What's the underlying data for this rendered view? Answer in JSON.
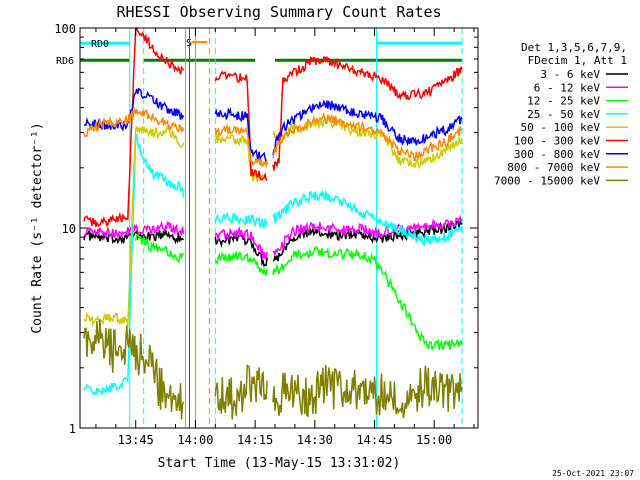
{
  "chart_data": {
    "type": "line",
    "title": "RHESSI Observing Summary Count Rates",
    "xlabel": "Start Time (13-May-15 13:31:02)",
    "ylabel": "Count Rate (s⁻¹ detector⁻¹)",
    "y_scale": "log",
    "ylim": [
      1,
      100
    ],
    "xlim_minutes": [
      0,
      100
    ],
    "x_ticks": [
      {
        "t": 14,
        "label": "13:45"
      },
      {
        "t": 29,
        "label": "14:00"
      },
      {
        "t": 44,
        "label": "14:15"
      },
      {
        "t": 59,
        "label": "14:30"
      },
      {
        "t": 74,
        "label": "14:45"
      },
      {
        "t": 89,
        "label": "15:00"
      }
    ],
    "y_ticks": [
      {
        "v": 1,
        "label": "1"
      },
      {
        "v": 10,
        "label": "10"
      },
      {
        "v": 100,
        "label": "100"
      }
    ],
    "legend_header": [
      "Det 1,3,5,6,7,9,",
      "FDecim 1, Att 1"
    ],
    "series": [
      {
        "name": "3 - 6 keV",
        "color": "#000000",
        "points": [
          [
            1,
            9.2
          ],
          [
            8,
            8.8
          ],
          [
            14,
            9.2
          ],
          [
            18,
            9.0
          ],
          [
            22,
            9.4
          ],
          [
            24,
            9.0
          ],
          [
            34,
            8.6
          ],
          [
            40,
            8.8
          ],
          [
            43,
            8.5
          ],
          [
            46,
            6.8
          ],
          [
            50,
            7.2
          ],
          [
            53,
            9.0
          ],
          [
            59,
            9.6
          ],
          [
            65,
            9.2
          ],
          [
            70,
            9.4
          ],
          [
            74,
            8.8
          ],
          [
            80,
            9.2
          ],
          [
            87,
            9.6
          ],
          [
            92,
            10.0
          ],
          [
            96,
            10.4
          ]
        ]
      },
      {
        "name": "6 - 12 keV",
        "color": "#ff00ff",
        "points": [
          [
            1,
            9.6
          ],
          [
            8,
            9.4
          ],
          [
            14,
            9.8
          ],
          [
            18,
            9.8
          ],
          [
            22,
            10.2
          ],
          [
            24,
            9.8
          ],
          [
            34,
            9.2
          ],
          [
            40,
            9.5
          ],
          [
            43,
            9.2
          ],
          [
            46,
            7.4
          ],
          [
            50,
            7.8
          ],
          [
            53,
            9.6
          ],
          [
            59,
            10.2
          ],
          [
            65,
            9.8
          ],
          [
            70,
            10.0
          ],
          [
            74,
            9.4
          ],
          [
            80,
            9.8
          ],
          [
            87,
            10.2
          ],
          [
            92,
            10.6
          ],
          [
            96,
            11.0
          ]
        ]
      },
      {
        "name": "12 - 25 keV",
        "color": "#00ff00",
        "points": [
          [
            14,
            9.0
          ],
          [
            18,
            8.0
          ],
          [
            22,
            7.6
          ],
          [
            24,
            7.2
          ],
          [
            34,
            7.0
          ],
          [
            40,
            7.2
          ],
          [
            43,
            7.0
          ],
          [
            46,
            6.0
          ],
          [
            50,
            6.2
          ],
          [
            53,
            7.2
          ],
          [
            59,
            7.6
          ],
          [
            65,
            7.4
          ],
          [
            70,
            7.4
          ],
          [
            74,
            7.0
          ],
          [
            87,
            2.6
          ],
          [
            96,
            2.6
          ]
        ]
      },
      {
        "name": "25 - 50 keV",
        "color": "#00ffff",
        "points": [
          [
            1,
            1.6
          ],
          [
            5,
            1.5
          ],
          [
            8,
            1.6
          ],
          [
            12,
            1.7
          ],
          [
            14,
            29
          ],
          [
            16,
            22
          ],
          [
            18,
            19
          ],
          [
            22,
            17
          ],
          [
            25,
            16
          ],
          [
            27,
            14
          ],
          [
            34,
            11
          ],
          [
            38,
            11.2
          ],
          [
            43,
            11
          ],
          [
            46,
            10.6
          ],
          [
            50,
            11.6
          ],
          [
            53,
            13
          ],
          [
            56,
            14
          ],
          [
            59,
            14.6
          ],
          [
            62,
            14.4
          ],
          [
            65,
            14
          ],
          [
            68,
            13
          ],
          [
            70,
            12
          ],
          [
            74,
            11
          ],
          [
            80,
            9.8
          ],
          [
            87,
            8.6
          ],
          [
            92,
            9.0
          ],
          [
            96,
            10.2
          ]
        ]
      },
      {
        "name": "50 - 100 keV",
        "color": "#cccc00",
        "points": [
          [
            1,
            3.6
          ],
          [
            5,
            3.4
          ],
          [
            8,
            3.6
          ],
          [
            12,
            3.4
          ],
          [
            14,
            31
          ],
          [
            18,
            30
          ],
          [
            22,
            30
          ],
          [
            25,
            27
          ],
          [
            27,
            24
          ],
          [
            34,
            28
          ],
          [
            38,
            28
          ],
          [
            42,
            27
          ],
          [
            43,
            18
          ],
          [
            47,
            18
          ],
          [
            48,
            28
          ],
          [
            53,
            31
          ],
          [
            56,
            32
          ],
          [
            59,
            33
          ],
          [
            62,
            34
          ],
          [
            65,
            33
          ],
          [
            68,
            31
          ],
          [
            72,
            30
          ],
          [
            76,
            29
          ],
          [
            80,
            22
          ],
          [
            85,
            21
          ],
          [
            90,
            23
          ],
          [
            96,
            28
          ]
        ]
      },
      {
        "name": "100 - 300 keV",
        "color": "#ff0000",
        "points": [
          [
            1,
            11
          ],
          [
            5,
            10.6
          ],
          [
            8,
            11
          ],
          [
            12,
            11.2
          ],
          [
            14,
            100
          ],
          [
            16,
            92
          ],
          [
            18,
            80
          ],
          [
            22,
            68
          ],
          [
            25,
            62
          ],
          [
            27,
            56
          ],
          [
            34,
            57
          ],
          [
            38,
            57
          ],
          [
            42,
            56
          ],
          [
            43,
            19
          ],
          [
            47,
            18
          ],
          [
            48,
            19
          ],
          [
            50,
            22
          ],
          [
            51,
            54
          ],
          [
            54,
            60
          ],
          [
            57,
            66
          ],
          [
            60,
            70
          ],
          [
            63,
            68
          ],
          [
            66,
            64
          ],
          [
            70,
            60
          ],
          [
            74,
            58
          ],
          [
            76,
            55
          ],
          [
            80,
            47
          ],
          [
            84,
            46
          ],
          [
            88,
            48
          ],
          [
            92,
            55
          ],
          [
            96,
            62
          ]
        ]
      },
      {
        "name": "300 - 800 keV",
        "color": "#0000ff",
        "points": [
          [
            1,
            33
          ],
          [
            5,
            33
          ],
          [
            8,
            32
          ],
          [
            12,
            33
          ],
          [
            14,
            48
          ],
          [
            18,
            44
          ],
          [
            22,
            39
          ],
          [
            25,
            37
          ],
          [
            27,
            34
          ],
          [
            34,
            37
          ],
          [
            38,
            37
          ],
          [
            42,
            36
          ],
          [
            43,
            24
          ],
          [
            47,
            22
          ],
          [
            48,
            23
          ],
          [
            51,
            32
          ],
          [
            54,
            35
          ],
          [
            57,
            38
          ],
          [
            60,
            41
          ],
          [
            63,
            41
          ],
          [
            66,
            39
          ],
          [
            70,
            37
          ],
          [
            74,
            36
          ],
          [
            76,
            35
          ],
          [
            80,
            28
          ],
          [
            84,
            27
          ],
          [
            88,
            29
          ],
          [
            92,
            31
          ],
          [
            96,
            35
          ]
        ]
      },
      {
        "name": "800 - 7000 keV",
        "color": "#ff8800",
        "points": [
          [
            1,
            30
          ],
          [
            5,
            33
          ],
          [
            8,
            34
          ],
          [
            12,
            35
          ],
          [
            14,
            38
          ],
          [
            18,
            36
          ],
          [
            22,
            33
          ],
          [
            25,
            31
          ],
          [
            27,
            29
          ],
          [
            34,
            30
          ],
          [
            38,
            31
          ],
          [
            42,
            30
          ],
          [
            43,
            21
          ],
          [
            47,
            21
          ],
          [
            48,
            22
          ],
          [
            51,
            29
          ],
          [
            54,
            31
          ],
          [
            57,
            33
          ],
          [
            60,
            35
          ],
          [
            63,
            35
          ],
          [
            66,
            34
          ],
          [
            70,
            32
          ],
          [
            74,
            31
          ],
          [
            76,
            30
          ],
          [
            80,
            24
          ],
          [
            84,
            23
          ],
          [
            88,
            25
          ],
          [
            92,
            27
          ],
          [
            96,
            31
          ]
        ]
      },
      {
        "name": "7000 - 15000 keV",
        "color": "#808000",
        "points": [
          [
            1,
            2.8
          ],
          [
            5,
            3.0
          ],
          [
            8,
            2.4
          ],
          [
            12,
            2.6
          ],
          [
            14,
            2.2
          ],
          [
            16,
            2.4
          ],
          [
            18,
            2.0
          ],
          [
            20,
            1.6
          ],
          [
            22,
            1.5
          ],
          [
            25,
            1.4
          ],
          [
            27,
            1.2
          ],
          [
            34,
            1.5
          ],
          [
            38,
            1.4
          ],
          [
            42,
            1.6
          ],
          [
            43,
            1.7
          ],
          [
            47,
            1.5
          ],
          [
            50,
            1.4
          ],
          [
            53,
            1.6
          ],
          [
            56,
            1.4
          ],
          [
            59,
            1.5
          ],
          [
            62,
            1.7
          ],
          [
            65,
            1.5
          ],
          [
            70,
            1.6
          ],
          [
            74,
            1.5
          ],
          [
            80,
            1.4
          ],
          [
            87,
            1.6
          ],
          [
            92,
            1.5
          ],
          [
            96,
            1.6
          ]
        ]
      }
    ],
    "annotations": [
      {
        "text": "RD0",
        "color": "#008000"
      },
      {
        "text": "RD6",
        "color": "#008000"
      },
      {
        "text": "S",
        "color": "#ff8800"
      }
    ],
    "bars": {
      "rd0_color": "#00ffff",
      "rd6_color": "#008000",
      "s_color": "#ff8800",
      "rd0_segments": [
        [
          0,
          12.5
        ],
        [
          74.5,
          96
        ]
      ],
      "rd6_segments": [
        [
          0,
          12.5
        ],
        [
          16,
          44
        ],
        [
          49,
          96
        ]
      ],
      "s_segment": [
        28,
        32
      ]
    },
    "gaps": [
      [
        26,
        34
      ],
      [
        47,
        48.5
      ]
    ],
    "vlines": [
      {
        "t": 12.5,
        "color": "#00ffff",
        "style": "solid"
      },
      {
        "t": 16,
        "color": "#00ffff",
        "style": "dashed"
      },
      {
        "t": 26.5,
        "color": "#ff8800",
        "style": "solid"
      },
      {
        "t": 27.5,
        "color": "#ff0000",
        "style": "solid"
      },
      {
        "t": 29,
        "color": "#ff8800",
        "style": "solid"
      },
      {
        "t": 32.5,
        "color": "#ff8800",
        "style": "dashed"
      },
      {
        "t": 34,
        "color": "#00ffff",
        "style": "dashed"
      },
      {
        "t": 74.5,
        "color": "#00ffff",
        "style": "solid"
      },
      {
        "t": 96,
        "color": "#00ffff",
        "style": "dashed"
      }
    ],
    "grid": false,
    "legend_position": "right"
  },
  "footer": {
    "timestamp": "25-Oct-2021 23:07"
  }
}
